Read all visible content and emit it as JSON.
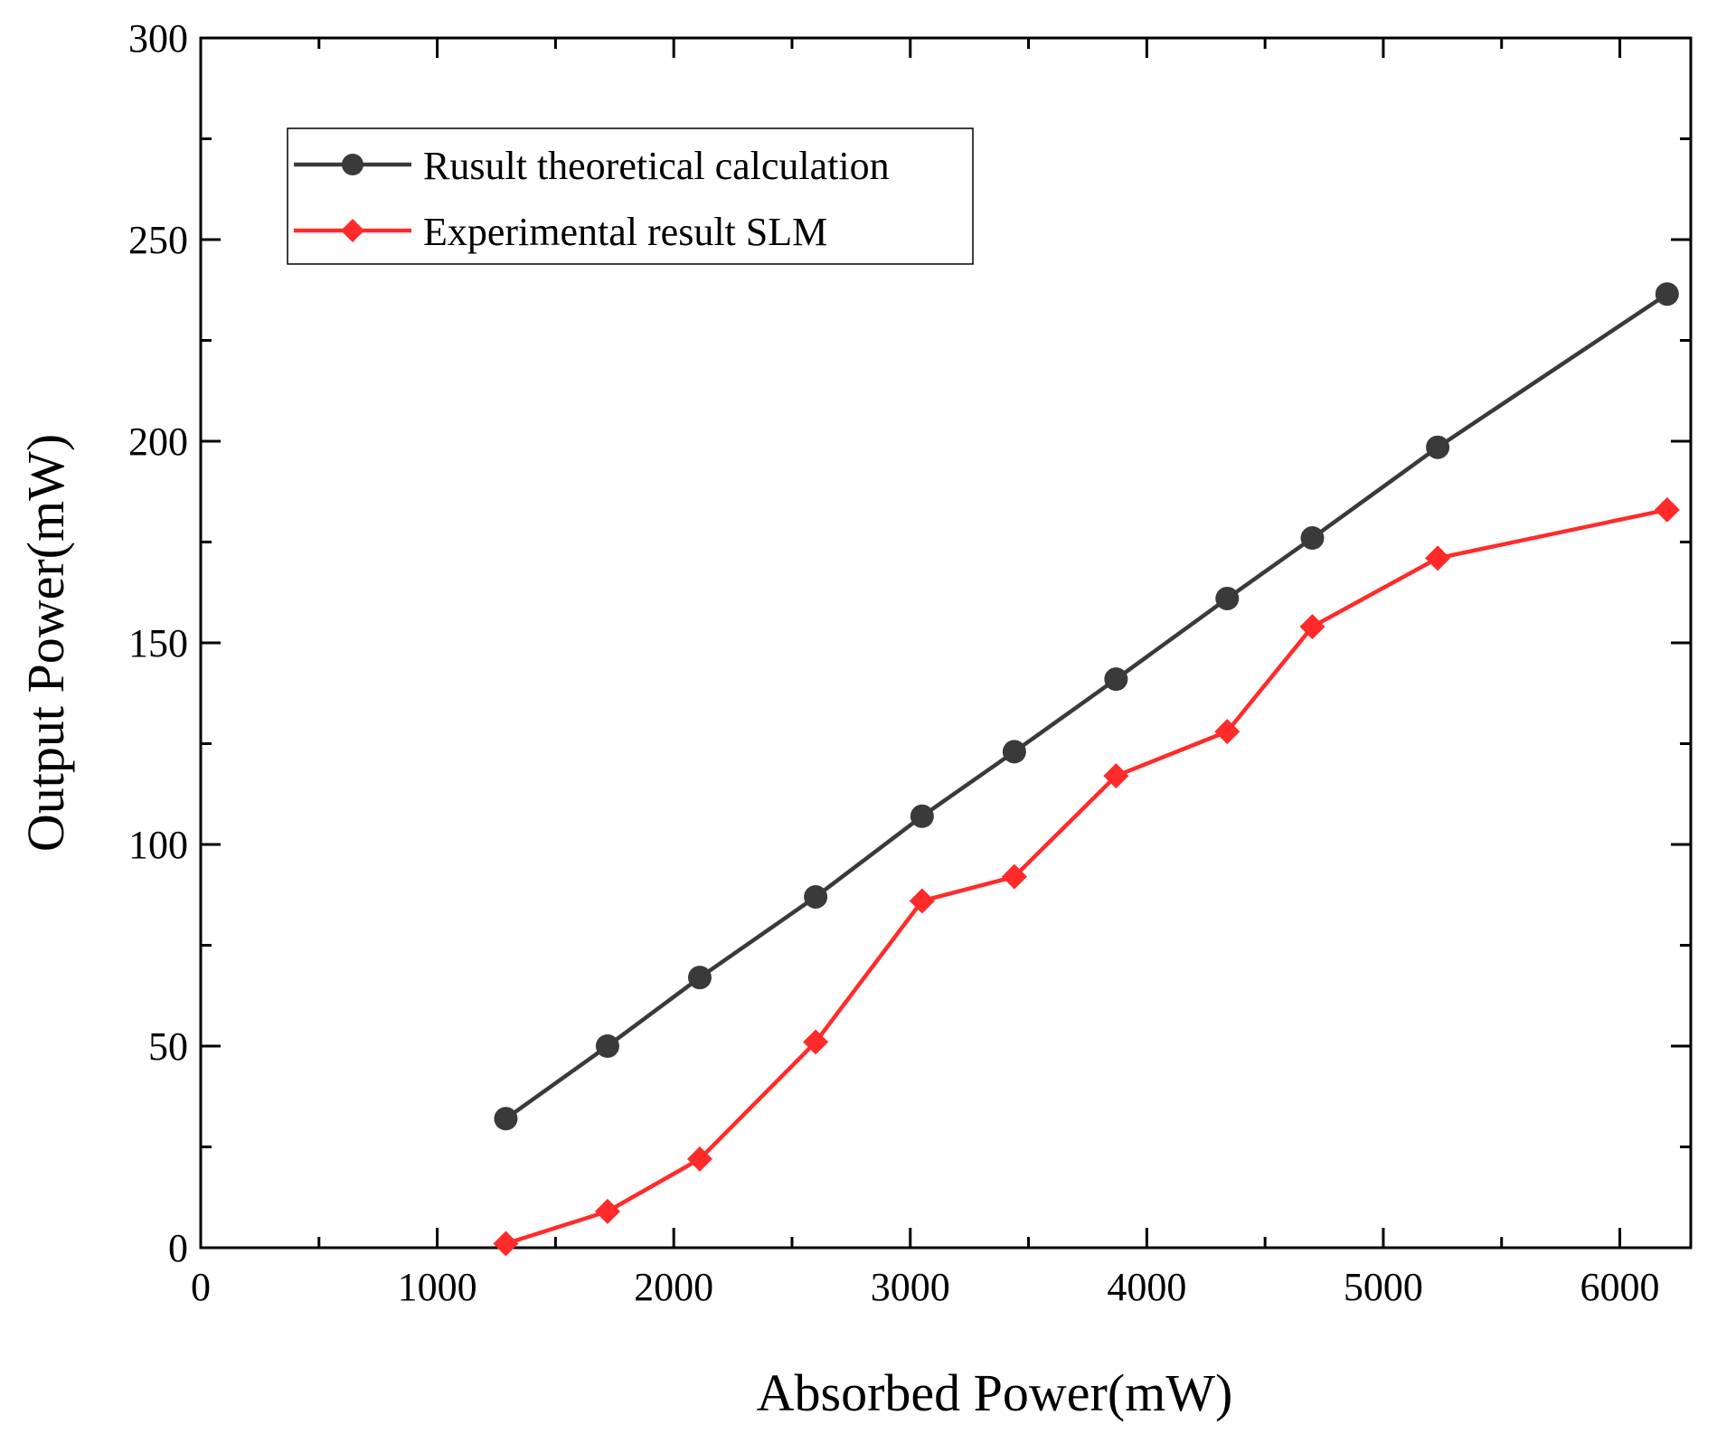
{
  "chart_data": {
    "type": "line",
    "title": "",
    "xlabel": "Absorbed Power(mW)",
    "ylabel": "Output Power(mW)",
    "xlim": [
      0,
      6300
    ],
    "ylim": [
      0,
      300
    ],
    "xticks": [
      0,
      1000,
      2000,
      3000,
      4000,
      5000,
      6000
    ],
    "xtick_labels": [
      "0",
      "1000",
      "2000",
      "3000",
      "4000",
      "5000",
      "6000"
    ],
    "yticks": [
      0,
      50,
      100,
      150,
      200,
      250,
      300
    ],
    "ytick_labels": [
      "0",
      "50",
      "100",
      "150",
      "200",
      "250",
      "300"
    ],
    "x_minor_step": 500,
    "y_minor_step": 25,
    "grid": false,
    "legend_position": "top-left",
    "series": [
      {
        "name": "Rusult theoretical calculation",
        "color": "#3a3a3a",
        "marker": "circle",
        "x": [
          1290,
          1720,
          2110,
          2600,
          3050,
          3440,
          3870,
          4340,
          4700,
          5230,
          6200
        ],
        "y": [
          32,
          50,
          67,
          87,
          107,
          123,
          141,
          161,
          176,
          198.5,
          236.5
        ]
      },
      {
        "name": "Experimental result SLM",
        "color": "#ff2b2b",
        "marker": "diamond",
        "x": [
          1290,
          1720,
          2110,
          2600,
          3050,
          3440,
          3870,
          4340,
          4700,
          5230,
          6200
        ],
        "y": [
          1,
          9,
          22,
          51,
          86,
          92,
          117,
          128,
          154,
          171,
          183
        ]
      }
    ]
  }
}
